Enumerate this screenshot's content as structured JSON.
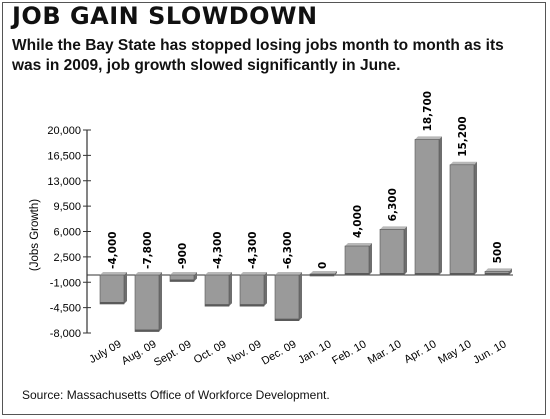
{
  "header": {
    "title": "JOB GAIN SLOWDOWN",
    "subtitle": "While the Bay State has stopped losing jobs month to month as its was in 2009, job growth slowed significantly in June."
  },
  "footer": {
    "source": "Source: Massachusetts Office of Workforce Development."
  },
  "colors": {
    "bar_top": "#9a9a9a",
    "bar_side": "#6e6e6e",
    "bar_bottom": "#5a5a5a",
    "axis": "#333333"
  },
  "chart_data": {
    "type": "bar",
    "title": "JOB GAIN SLOWDOWN",
    "ylabel": "(Jobs Growth)",
    "xlabel": "",
    "categories": [
      "July 09",
      "Aug. 09",
      "Sept. 09",
      "Oct. 09",
      "Nov. 09",
      "Dec. 09",
      "Jan. 10",
      "Feb. 10",
      "Mar. 10",
      "Apr. 10",
      "May 10",
      "Jun. 10"
    ],
    "values": [
      -4000,
      -7800,
      -900,
      -4300,
      -4300,
      -6300,
      0,
      4000,
      6300,
      18700,
      15200,
      500
    ],
    "data_labels": [
      "-4,000",
      "-7,800",
      "-900",
      "-4,300",
      "-4,300",
      "-6,300",
      "0",
      "4,000",
      "6,300",
      "18,700",
      "15,200",
      "500"
    ],
    "y_ticks": [
      20000,
      16500,
      13000,
      9500,
      6000,
      2500,
      -1000,
      -4500,
      -8000
    ],
    "y_tick_labels": [
      "20,000",
      "16,500",
      "13,000",
      "9,500",
      "6,000",
      "2,500",
      "-1,000",
      "-4,500",
      "-8,000"
    ],
    "ylim": [
      -8000,
      20000
    ],
    "grid": false,
    "legend": "none"
  }
}
